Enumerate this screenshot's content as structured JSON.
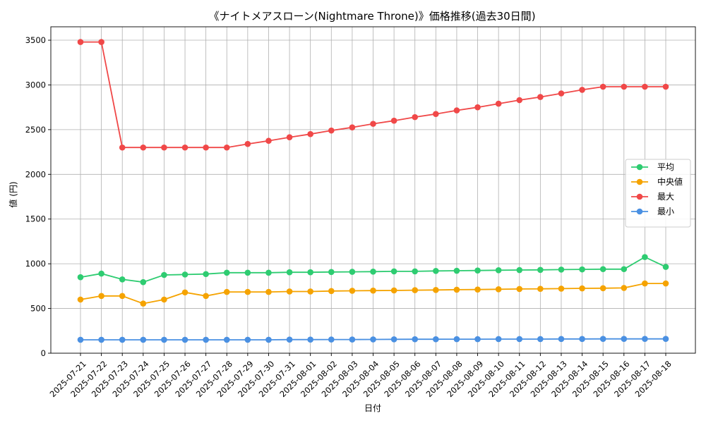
{
  "chart_data": {
    "type": "line",
    "title": "《ナイトメアスローン(Nightmare Throne)》価格推移(過去30日間)",
    "xlabel": "日付",
    "ylabel": "値 (円)",
    "ylim": [
      0,
      3650
    ],
    "yticks": [
      0,
      500,
      1000,
      1500,
      2000,
      2500,
      3000,
      3500
    ],
    "grid": true,
    "legend_position": "center-right",
    "x": [
      "2025-07-21",
      "2025-07-22",
      "2025-07-23",
      "2025-07-24",
      "2025-07-25",
      "2025-07-26",
      "2025-07-27",
      "2025-07-28",
      "2025-07-29",
      "2025-07-30",
      "2025-07-31",
      "2025-08-01",
      "2025-08-02",
      "2025-08-03",
      "2025-08-04",
      "2025-08-05",
      "2025-08-06",
      "2025-08-07",
      "2025-08-08",
      "2025-08-09",
      "2025-08-10",
      "2025-08-11",
      "2025-08-12",
      "2025-08-13",
      "2025-08-14",
      "2025-08-15",
      "2025-08-16",
      "2025-08-17",
      "2025-08-18"
    ],
    "series": [
      {
        "name": "平均",
        "color": "#2ecc71",
        "values": [
          850,
          890,
          825,
          795,
          875,
          880,
          885,
          900,
          900,
          900,
          905,
          905,
          908,
          910,
          912,
          915,
          915,
          920,
          922,
          925,
          928,
          930,
          932,
          935,
          937,
          940,
          940,
          1075,
          965
        ]
      },
      {
        "name": "中央値",
        "color": "#f5a300",
        "values": [
          600,
          640,
          640,
          555,
          600,
          680,
          640,
          685,
          685,
          685,
          690,
          690,
          695,
          698,
          700,
          702,
          705,
          707,
          710,
          712,
          715,
          718,
          720,
          722,
          725,
          727,
          730,
          780,
          780
        ]
      },
      {
        "name": "最大",
        "color": "#f04848",
        "values": [
          3480,
          3480,
          2300,
          2300,
          2300,
          2300,
          2300,
          2300,
          2340,
          2375,
          2415,
          2450,
          2490,
          2525,
          2565,
          2600,
          2640,
          2675,
          2715,
          2750,
          2790,
          2830,
          2865,
          2905,
          2945,
          2980,
          2980,
          2980,
          2980
        ]
      },
      {
        "name": "最小",
        "color": "#4a90e2",
        "values": [
          150,
          150,
          150,
          150,
          150,
          150,
          150,
          150,
          150,
          150,
          152,
          152,
          153,
          153,
          154,
          155,
          156,
          156,
          157,
          157,
          158,
          158,
          158,
          159,
          159,
          160,
          160,
          160,
          160
        ]
      }
    ]
  }
}
